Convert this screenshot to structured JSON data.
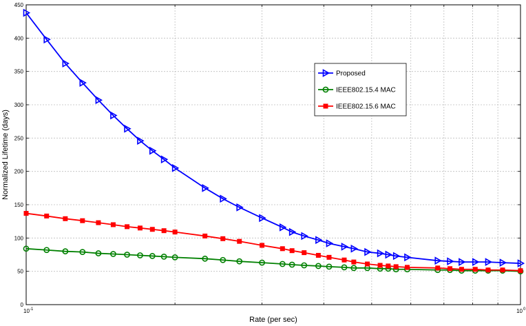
{
  "chart_data": {
    "type": "line",
    "xlabel": "Rate (per sec)",
    "ylabel": "Normalized Lifetime (days)",
    "xscale": "log",
    "xlim": [
      0.1,
      1
    ],
    "ylim": [
      0,
      450
    ],
    "grid": true,
    "legend_position": "upper-right-center",
    "x_tick_labels": [
      {
        "value": 0.1,
        "base": "10",
        "exp": "-1"
      },
      {
        "value": 1,
        "base": "10",
        "exp": "0"
      }
    ],
    "y_ticks": [
      "0",
      "50",
      "100",
      "150",
      "200",
      "250",
      "300",
      "350",
      "400",
      "450"
    ],
    "series": [
      {
        "name": "Proposed",
        "color": "#0000ff",
        "marker": "triangle-right",
        "x": [
          0.1,
          0.11,
          0.12,
          0.13,
          0.14,
          0.15,
          0.16,
          0.17,
          0.18,
          0.19,
          0.2,
          0.23,
          0.25,
          0.27,
          0.3,
          0.33,
          0.345,
          0.365,
          0.39,
          0.41,
          0.44,
          0.46,
          0.49,
          0.52,
          0.54,
          0.56,
          0.59,
          0.68,
          0.72,
          0.76,
          0.81,
          0.86,
          0.92,
          1.0
        ],
        "values": [
          438,
          398,
          362,
          333,
          307,
          284,
          264,
          246,
          231,
          218,
          205,
          175,
          159,
          146,
          130,
          116,
          109,
          103,
          97,
          92,
          87,
          84,
          79,
          77,
          75,
          73,
          71,
          66,
          65,
          64,
          64,
          64,
          63,
          62
        ]
      },
      {
        "name": "IEEE802.15.4 MAC",
        "color": "#008000",
        "marker": "circle",
        "x": [
          0.1,
          0.11,
          0.12,
          0.13,
          0.14,
          0.15,
          0.16,
          0.17,
          0.18,
          0.19,
          0.2,
          0.23,
          0.25,
          0.27,
          0.3,
          0.33,
          0.345,
          0.365,
          0.39,
          0.41,
          0.44,
          0.46,
          0.49,
          0.52,
          0.54,
          0.56,
          0.59,
          0.68,
          0.72,
          0.76,
          0.81,
          0.86,
          0.92,
          1.0
        ],
        "values": [
          84,
          82,
          80,
          79,
          77,
          76,
          75,
          74,
          73,
          72,
          71,
          69,
          67,
          65,
          63,
          61,
          60,
          59,
          58,
          57,
          56,
          55,
          55,
          54,
          54,
          53,
          53,
          52,
          52,
          51,
          51,
          51,
          51,
          50
        ]
      },
      {
        "name": "IEEE802.15.6 MAC",
        "color": "#ff0000",
        "marker": "square",
        "x": [
          0.1,
          0.11,
          0.12,
          0.13,
          0.14,
          0.15,
          0.16,
          0.17,
          0.18,
          0.19,
          0.2,
          0.23,
          0.25,
          0.27,
          0.3,
          0.33,
          0.345,
          0.365,
          0.39,
          0.41,
          0.44,
          0.46,
          0.49,
          0.52,
          0.54,
          0.56,
          0.59,
          0.68,
          0.72,
          0.76,
          0.81,
          0.86,
          0.92,
          1.0
        ],
        "values": [
          137,
          133,
          129,
          126,
          123,
          120,
          117,
          115,
          113,
          111,
          109,
          103,
          99,
          95,
          89,
          84,
          81,
          78,
          74,
          71,
          67,
          64,
          61,
          59,
          58,
          57,
          56,
          55,
          54,
          53,
          53,
          52,
          52,
          51
        ]
      }
    ]
  }
}
